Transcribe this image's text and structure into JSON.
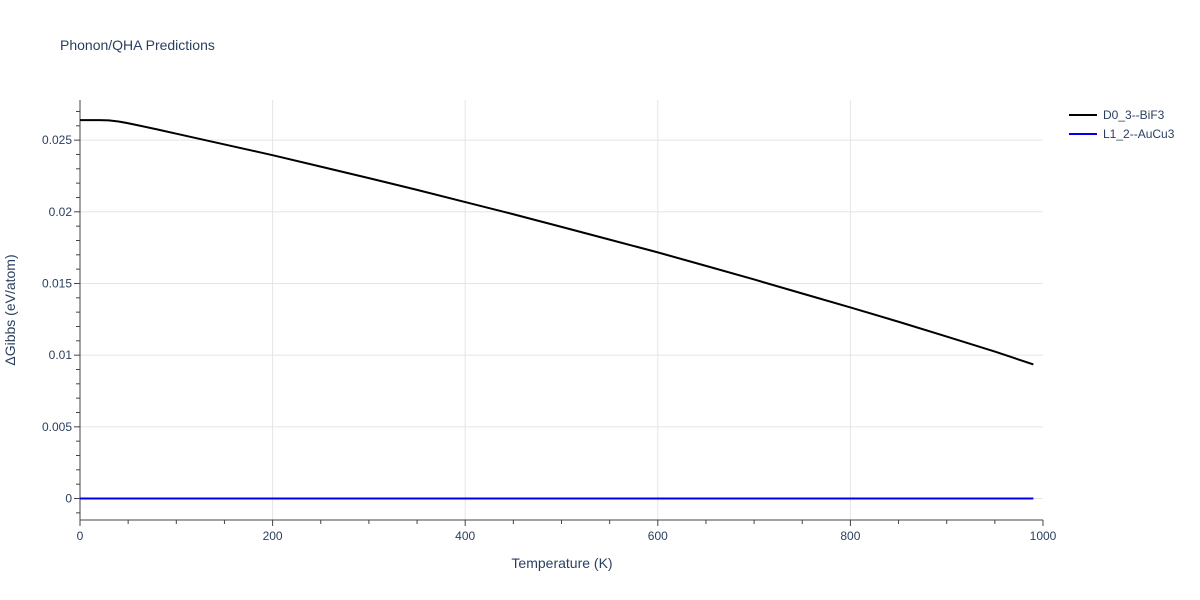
{
  "chart_data": {
    "type": "line",
    "title": "Phonon/QHA Predictions",
    "xlabel": "Temperature (K)",
    "ylabel": "ΔGibbs (eV/atom)",
    "xlim": [
      0,
      1000
    ],
    "ylim": [
      -0.0015,
      0.0278
    ],
    "x_ticks": [
      0,
      200,
      400,
      600,
      800,
      1000
    ],
    "x_tick_labels": [
      "0",
      "200",
      "400",
      "600",
      "800",
      "1000"
    ],
    "y_ticks": [
      0,
      0.005,
      0.01,
      0.015,
      0.02,
      0.025
    ],
    "y_tick_labels": [
      "0",
      "0.005",
      "0.01",
      "0.015",
      "0.02",
      "0.025"
    ],
    "grid": true,
    "legend_position": "top-right",
    "series": [
      {
        "name": "D0_3--BiF3",
        "color": "#000000",
        "x": [
          0,
          10,
          20,
          30,
          40,
          50,
          60,
          80,
          100,
          150,
          200,
          250,
          300,
          350,
          400,
          450,
          500,
          550,
          600,
          650,
          700,
          750,
          800,
          850,
          900,
          950,
          990
        ],
        "y": [
          0.0264,
          0.0264,
          0.0264,
          0.02638,
          0.0263,
          0.02618,
          0.02604,
          0.02575,
          0.02545,
          0.0247,
          0.02395,
          0.02315,
          0.02235,
          0.02153,
          0.02068,
          0.01983,
          0.01895,
          0.01806,
          0.01717,
          0.01623,
          0.01528,
          0.0143,
          0.01333,
          0.01233,
          0.0113,
          0.01025,
          0.00935
        ]
      },
      {
        "name": "L1_2--AuCu3",
        "color": "#0000ee",
        "x": [
          0,
          990
        ],
        "y": [
          0,
          0
        ]
      }
    ]
  }
}
